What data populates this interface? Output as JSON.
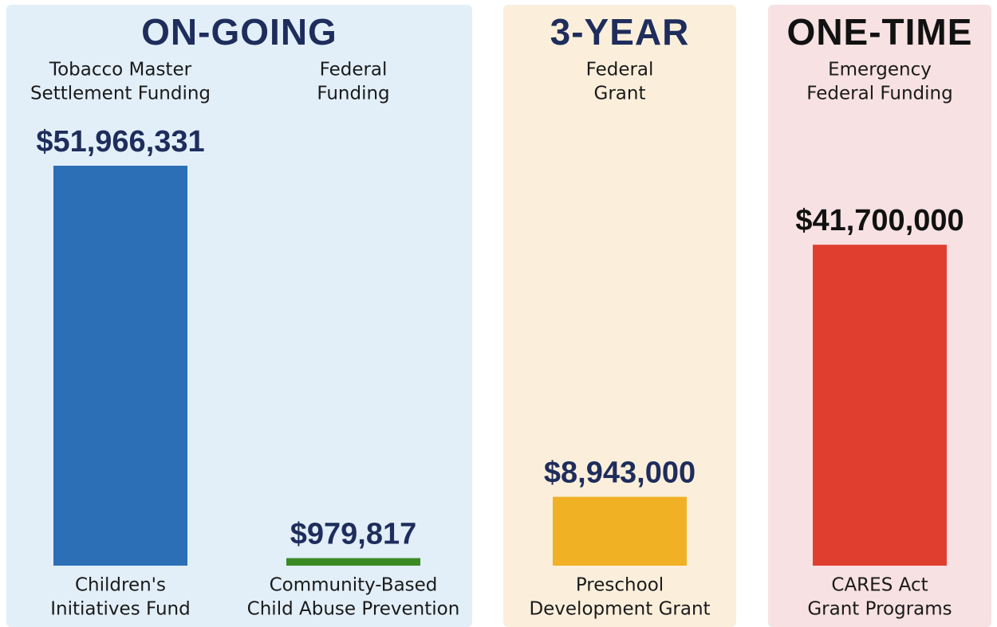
{
  "chart_data": {
    "type": "bar",
    "panels": [
      {
        "title": "ON-GOING",
        "title_color": "#1f2d5c",
        "background": "#e2eff9",
        "bars": [
          {
            "funding": [
              "Tobacco Master",
              "Settlement Funding"
            ],
            "value": 51966331,
            "value_label": "$51,966,331",
            "label_color": "#1f2d5c",
            "color": "#2d6fb7",
            "category": [
              "Children's",
              "Initiatives Fund"
            ]
          },
          {
            "funding": [
              "Federal",
              "Funding"
            ],
            "value": 979817,
            "value_label": "$979,817",
            "label_color": "#1f2d5c",
            "color": "#3a8a24",
            "category": [
              "Community-Based",
              "Child Abuse Prevention"
            ]
          }
        ]
      },
      {
        "title": "3-YEAR",
        "title_color": "#1f2d5c",
        "background": "#fbefdb",
        "bars": [
          {
            "funding": [
              "Federal",
              "Grant"
            ],
            "value": 8943000,
            "value_label": "$8,943,000",
            "label_color": "#1f2d5c",
            "color": "#f0b125",
            "category": [
              "Preschool",
              "Development Grant"
            ]
          }
        ]
      },
      {
        "title": "ONE-TIME",
        "title_color": "#111111",
        "background": "#f7e1e2",
        "bars": [
          {
            "funding": [
              "Emergency",
              "Federal Funding"
            ],
            "value": 41700000,
            "value_label": "$41,700,000",
            "label_color": "#111111",
            "color": "#e03f30",
            "category": [
              "CARES Act",
              "Grant Programs"
            ]
          }
        ]
      }
    ]
  }
}
